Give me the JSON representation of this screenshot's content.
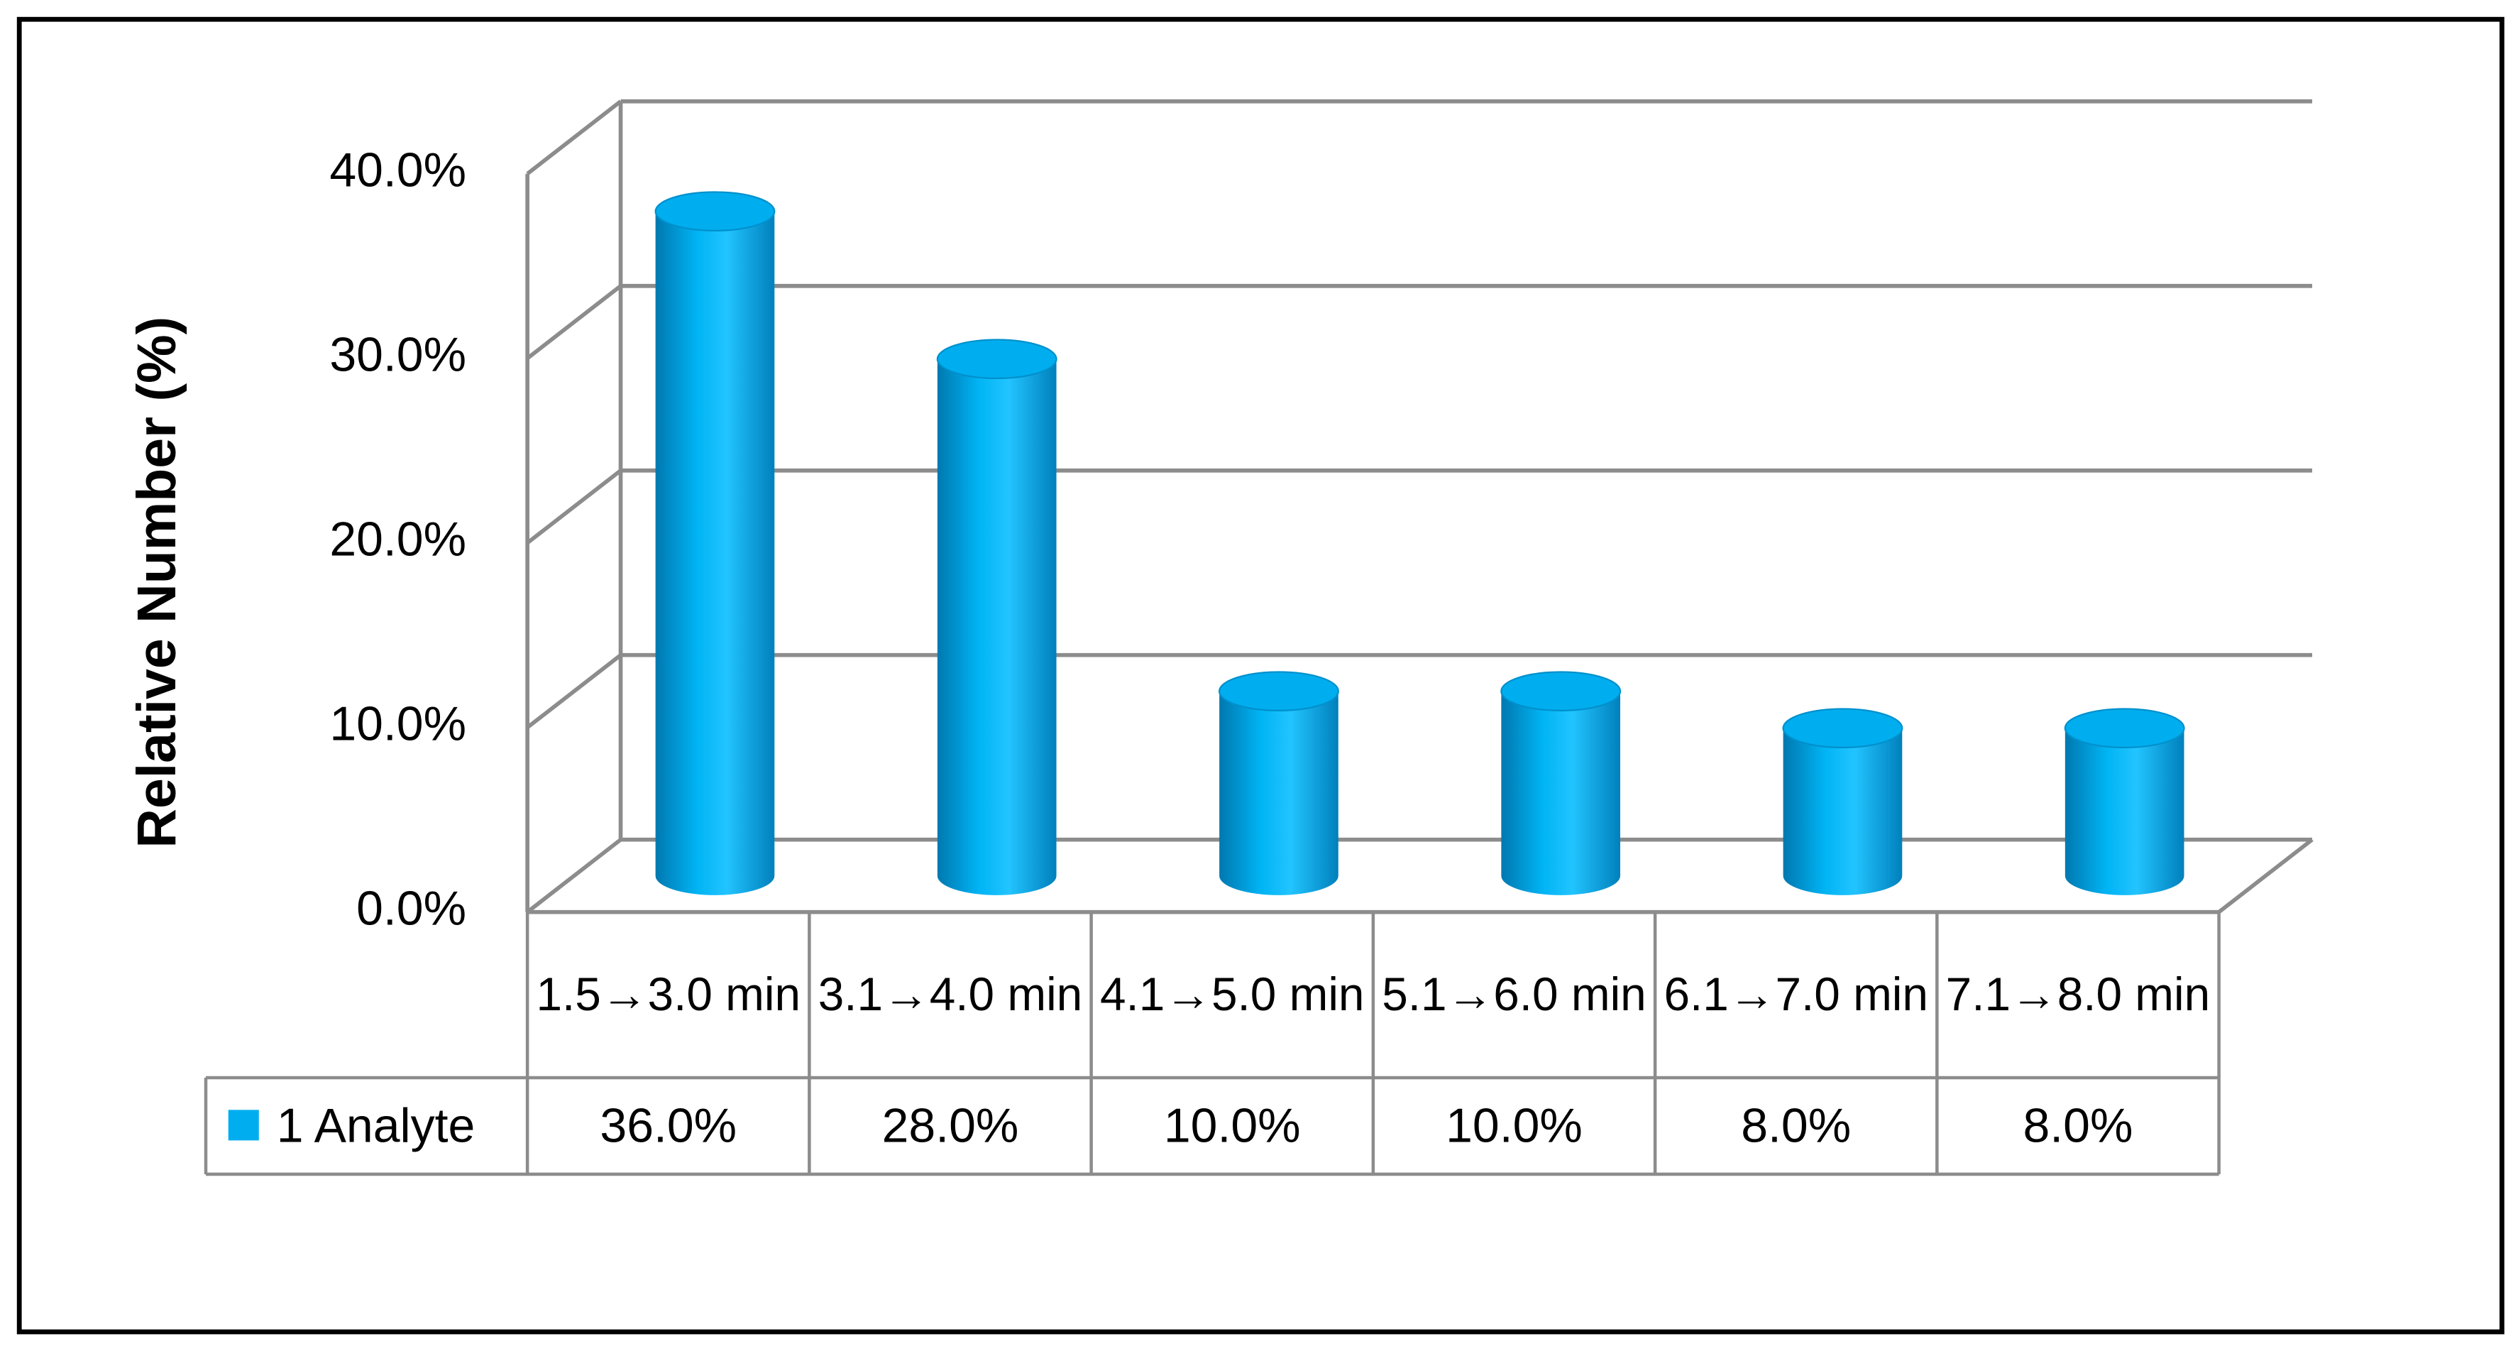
{
  "chart_data": {
    "type": "bar3d",
    "y_label": "Relative Number (%)",
    "categories": [
      "1.5→3.0 min",
      "3.1→4.0 min",
      "4.1→5.0 min",
      "5.1→6.0 min",
      "6.1→7.0 min",
      "7.1→8.0 min"
    ],
    "series": [
      {
        "name": "1 Analyte",
        "color": "#00aeef",
        "values": [
          36,
          28,
          10,
          10,
          8,
          8
        ],
        "value_labels": [
          "36.0%",
          "28.0%",
          "10.0%",
          "10.0%",
          "8.0%",
          "8.0%"
        ]
      }
    ],
    "ylim": [
      0,
      40
    ],
    "yticks": [
      {
        "value": 0,
        "label": "0.0%"
      },
      {
        "value": 10,
        "label": "10.0%"
      },
      {
        "value": 20,
        "label": "20.0%"
      },
      {
        "value": 30,
        "label": "30.0%"
      },
      {
        "value": 40,
        "label": "40.0%"
      }
    ],
    "grid": true,
    "data_table": true
  }
}
